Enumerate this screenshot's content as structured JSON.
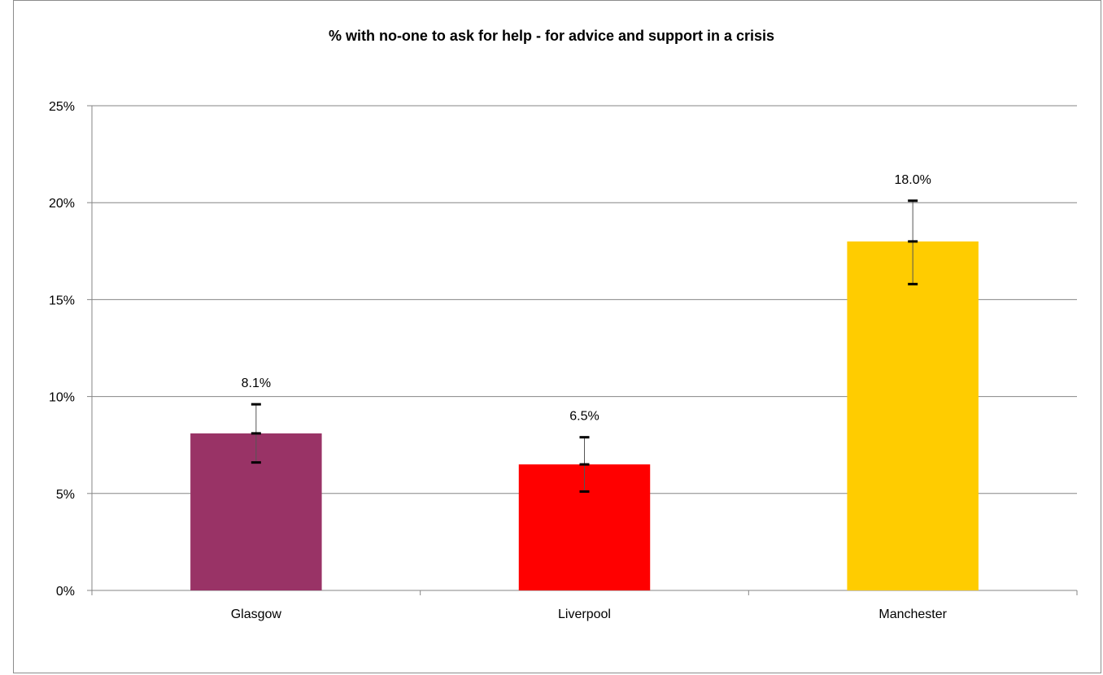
{
  "chart_data": {
    "type": "bar",
    "title": "% with no-one to ask for help  - for advice and support in a crisis",
    "xlabel": "",
    "ylabel": "",
    "categories": [
      "Glasgow",
      "Liverpool",
      "Manchester"
    ],
    "values": [
      8.1,
      6.5,
      18.0
    ],
    "data_labels": [
      "8.1%",
      "6.5%",
      "18.0%"
    ],
    "error_bars": [
      {
        "low": 6.6,
        "high": 9.6
      },
      {
        "low": 5.1,
        "high": 7.9
      },
      {
        "low": 15.8,
        "high": 20.1
      }
    ],
    "colors": [
      "#993366",
      "#FF0000",
      "#FFCC00"
    ],
    "ylim": [
      0,
      25
    ],
    "yticks": [
      0,
      5,
      10,
      15,
      20,
      25
    ],
    "ytick_labels": [
      "0%",
      "5%",
      "10%",
      "15%",
      "20%",
      "25%"
    ],
    "grid": true,
    "legend": "none"
  }
}
